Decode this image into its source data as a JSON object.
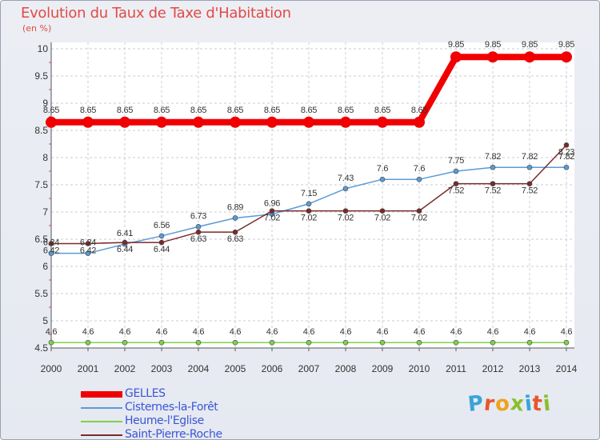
{
  "header": {
    "title": "Evolution du Taux de Taxe d'Habitation",
    "unit": "(en %)"
  },
  "logo": {
    "text": "Proxiti",
    "colors": [
      "#3aa3d8",
      "#e8562b",
      "#f0a21c",
      "#8bbf2d",
      "#3aa3d8",
      "#e8562b",
      "#8bbf2d"
    ]
  },
  "chart_data": {
    "type": "line",
    "title": "Evolution du Taux de Taxe d'Habitation",
    "ylabel": "(en %)",
    "xlabel": "",
    "x": [
      "2000",
      "2001",
      "2002",
      "2003",
      "2004",
      "2005",
      "2006",
      "2007",
      "2008",
      "2009",
      "2010",
      "2011",
      "2012",
      "2013",
      "2014"
    ],
    "ylim": [
      4.5,
      10
    ],
    "yticks": [
      "4.5",
      "5",
      "5.5",
      "6",
      "6.5",
      "7",
      "7.5",
      "8",
      "8.5",
      "9",
      "9.5",
      "10"
    ],
    "grid": true,
    "legend": "bottom-left",
    "series": [
      {
        "name": "GELLES",
        "color": "#f00000",
        "values": [
          8.65,
          8.65,
          8.65,
          8.65,
          8.65,
          8.65,
          8.65,
          8.65,
          8.65,
          8.65,
          8.65,
          9.85,
          9.85,
          9.85,
          9.85
        ],
        "labels": [
          "8.65",
          "8.65",
          "8.65",
          "8.65",
          "8.65",
          "8.65",
          "8.65",
          "8.65",
          "8.65",
          "8.65",
          "8.65",
          "9.85",
          "9.85",
          "9.85",
          "9.85"
        ]
      },
      {
        "name": "Cisternes-la-Forêt",
        "color": "#5b9bd5",
        "values": [
          6.24,
          6.24,
          6.41,
          6.56,
          6.73,
          6.89,
          6.96,
          7.15,
          7.43,
          7.6,
          7.6,
          7.75,
          7.82,
          7.82,
          7.82
        ],
        "labels": [
          "6.24",
          "6.24",
          "6.41",
          "6.56",
          "6.73",
          "6.89",
          "6.96",
          "7.15",
          "7.43",
          "7.6",
          "7.6",
          "7.75",
          "7.82",
          "7.82",
          "7.82"
        ]
      },
      {
        "name": "Heume-l'Eglise",
        "color": "#7fd04b",
        "values": [
          4.6,
          4.6,
          4.6,
          4.6,
          4.6,
          4.6,
          4.6,
          4.6,
          4.6,
          4.6,
          4.6,
          4.6,
          4.6,
          4.6,
          4.6
        ],
        "labels": [
          "4.6",
          "4.6",
          "4.6",
          "4.6",
          "4.6",
          "4.6",
          "4.6",
          "4.6",
          "4.6",
          "4.6",
          "4.6",
          "4.6",
          "4.6",
          "4.6",
          "4.6"
        ]
      },
      {
        "name": "Saint-Pierre-Roche",
        "color": "#7a2a2a",
        "values": [
          6.42,
          6.42,
          6.44,
          6.44,
          6.63,
          6.63,
          7.02,
          7.02,
          7.02,
          7.02,
          7.02,
          7.52,
          7.52,
          7.52,
          8.23
        ],
        "labels": [
          "6.42",
          "6.42",
          "6.44",
          "6.44",
          "6.63",
          "6.63",
          "7.02",
          "7.02",
          "7.02",
          "7.02",
          "7.02",
          "7.52",
          "7.52",
          "7.52",
          "8.23"
        ]
      }
    ]
  }
}
